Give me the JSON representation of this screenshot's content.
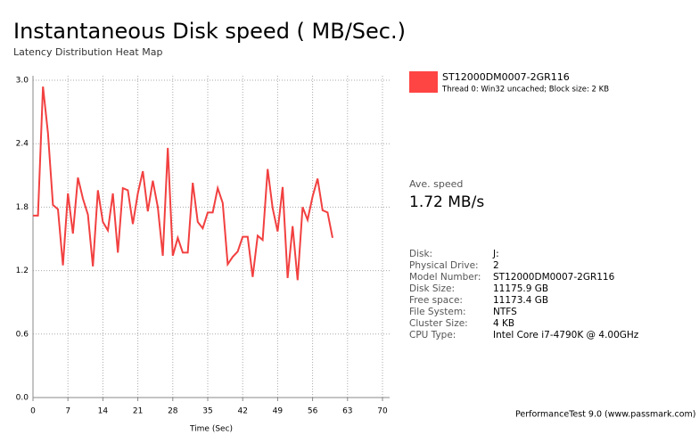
{
  "chart_data": {
    "type": "line",
    "title": "Instantaneous Disk speed ( MB/Sec.)",
    "subtitle": "Latency Distribution Heat Map",
    "x_label": "Time (Sec)",
    "x": [
      0,
      1,
      2,
      3,
      4,
      5,
      6,
      7,
      8,
      9,
      10,
      11,
      12,
      13,
      14,
      15,
      16,
      17,
      18,
      19,
      20,
      21,
      22,
      23,
      24,
      25,
      26,
      27,
      28,
      29,
      30,
      31,
      32,
      33,
      34,
      35,
      36,
      37,
      38,
      39,
      40,
      41,
      42,
      43,
      44,
      45,
      46,
      47,
      48,
      49,
      50,
      51,
      52,
      53,
      54,
      55,
      56,
      57,
      58,
      59,
      60
    ],
    "series": [
      {
        "name": "ST12000DM0007-2GR116",
        "description": "Thread 0: Win32 uncached; Block size: 2 KB",
        "color": "#f24040",
        "values": [
          1.72,
          1.72,
          2.94,
          2.5,
          1.82,
          1.78,
          1.25,
          1.93,
          1.55,
          2.08,
          1.88,
          1.73,
          1.24,
          1.96,
          1.66,
          1.58,
          1.93,
          1.37,
          1.98,
          1.96,
          1.64,
          1.93,
          2.14,
          1.76,
          2.05,
          1.8,
          1.34,
          2.36,
          1.34,
          1.51,
          1.37,
          1.37,
          2.03,
          1.66,
          1.6,
          1.75,
          1.75,
          1.98,
          1.84,
          1.26,
          1.33,
          1.38,
          1.52,
          1.52,
          1.14,
          1.53,
          1.49,
          2.16,
          1.79,
          1.57,
          1.99,
          1.13,
          1.62,
          1.11,
          1.8,
          1.68,
          1.9,
          2.07,
          1.77,
          1.75,
          1.51
        ]
      }
    ],
    "xlim": [
      0,
      70
    ],
    "xticks": [
      0,
      7,
      14,
      21,
      28,
      35,
      42,
      49,
      56,
      63,
      70
    ],
    "ylim": [
      0,
      3
    ],
    "yticks": [
      {
        "value": 0,
        "label": "0.0"
      },
      0.6,
      1.2,
      1.8,
      2.4,
      {
        "value": 3,
        "label": "3.0"
      }
    ],
    "grid": true
  },
  "summary": {
    "label": "Ave. speed",
    "value": "1.72 MB/s"
  },
  "info": [
    [
      "Disk:",
      "J:"
    ],
    [
      "Physical Drive:",
      "2"
    ],
    [
      "Model Number:",
      "ST12000DM0007-2GR116"
    ],
    [
      "Disk Size:",
      "11175.9 GB"
    ],
    [
      "Free space:",
      "11173.4 GB"
    ],
    [
      "File System:",
      "NTFS"
    ],
    [
      "Cluster Size:",
      "4 KB"
    ],
    [
      "CPU Type:",
      "Intel Core i7-4790K @ 4.00GHz"
    ]
  ],
  "footer": "PerformanceTest 9.0 (www.passmark.com)"
}
